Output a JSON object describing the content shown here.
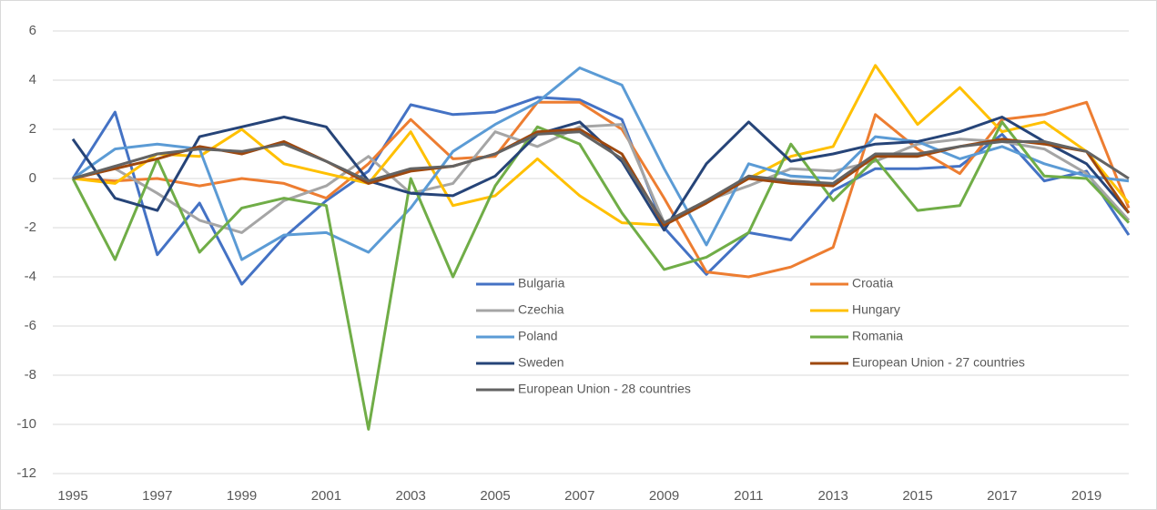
{
  "chart_data": {
    "type": "line",
    "x": [
      1995,
      1996,
      1997,
      1998,
      1999,
      2000,
      2001,
      2002,
      2003,
      2004,
      2005,
      2006,
      2007,
      2008,
      2009,
      2010,
      2011,
      2012,
      2013,
      2014,
      2015,
      2016,
      2017,
      2018,
      2019,
      2020
    ],
    "xlim": [
      1995,
      2020
    ],
    "xticks": [
      1995,
      1997,
      1999,
      2001,
      2003,
      2005,
      2007,
      2009,
      2011,
      2013,
      2015,
      2017,
      2019
    ],
    "ylim": [
      -12,
      6
    ],
    "yticks": [
      -12,
      -10,
      -8,
      -6,
      -4,
      -2,
      0,
      2,
      4,
      6
    ],
    "grid": true,
    "legend": "center",
    "series": [
      {
        "name": "Bulgaria",
        "color": "#4472c4",
        "values": [
          0,
          2.7,
          -3.1,
          -1.0,
          -4.3,
          -2.4,
          -0.9,
          0.3,
          3.0,
          2.6,
          2.7,
          3.3,
          3.2,
          2.4,
          -2.0,
          -3.9,
          -2.2,
          -2.5,
          -0.5,
          0.4,
          0.4,
          0.5,
          1.8,
          -0.1,
          0.3,
          -2.3
        ]
      },
      {
        "name": "Croatia",
        "color": "#ed7d31",
        "values": [
          0,
          -0.1,
          0,
          -0.3,
          0,
          -0.2,
          -0.8,
          0.6,
          2.4,
          0.8,
          0.9,
          3.1,
          3.1,
          2.0,
          -0.8,
          -3.8,
          -4.0,
          -3.6,
          -2.8,
          2.6,
          1.2,
          0.2,
          2.4,
          2.6,
          3.1,
          -1.2
        ]
      },
      {
        "name": "Czechia",
        "color": "#a5a5a5",
        "values": [
          0,
          0.4,
          -0.6,
          -1.7,
          -2.2,
          -0.9,
          -0.3,
          0.9,
          -0.6,
          -0.2,
          1.9,
          1.3,
          2.1,
          2.2,
          -1.8,
          -0.9,
          -0.3,
          0.4,
          0.3,
          0.7,
          1.4,
          1.6,
          1.5,
          1.2,
          0.2,
          -1.7
        ]
      },
      {
        "name": "Hungary",
        "color": "#ffc000",
        "values": [
          0,
          -0.2,
          1.0,
          0.9,
          2.0,
          0.6,
          0.2,
          -0.2,
          1.9,
          -1.1,
          -0.7,
          0.8,
          -0.7,
          -1.8,
          -1.9,
          -0.9,
          0,
          0.9,
          1.3,
          4.6,
          2.2,
          3.7,
          1.9,
          2.3,
          1.1,
          -1.0
        ]
      },
      {
        "name": "Poland",
        "color": "#5b9bd5",
        "values": [
          0,
          1.2,
          1.4,
          1.2,
          -3.3,
          -2.3,
          -2.2,
          -3.0,
          -1.2,
          1.1,
          2.2,
          3.1,
          4.5,
          3.8,
          0.4,
          -2.7,
          0.6,
          0.1,
          0,
          1.7,
          1.5,
          0.8,
          1.3,
          0.6,
          0.1,
          -0.1
        ]
      },
      {
        "name": "Romania",
        "color": "#70ad47",
        "values": [
          0,
          -3.3,
          0.8,
          -3.0,
          -1.2,
          -0.8,
          -1.1,
          -10.2,
          0,
          -4.0,
          -0.3,
          2.1,
          1.4,
          -1.4,
          -3.7,
          -3.2,
          -2.2,
          1.4,
          -0.9,
          0.8,
          -1.3,
          -1.1,
          2.3,
          0.1,
          0,
          -1.8
        ]
      },
      {
        "name": "Sweden",
        "color": "#264478",
        "values": [
          1.6,
          -0.8,
          -1.3,
          1.7,
          2.1,
          2.5,
          2.1,
          -0.1,
          -0.6,
          -0.7,
          0.1,
          1.8,
          2.3,
          0.7,
          -2.1,
          0.6,
          2.3,
          0.7,
          1.0,
          1.4,
          1.5,
          1.9,
          2.5,
          1.5,
          0.6,
          -1.4
        ]
      },
      {
        "name": "European Union - 27 countries",
        "color": "#9e480e",
        "values": [
          0,
          0.4,
          0.8,
          1.3,
          1.0,
          1.5,
          0.7,
          -0.2,
          0.3,
          0.5,
          1.0,
          1.9,
          2.0,
          1.0,
          -1.9,
          -1.0,
          0,
          -0.2,
          -0.3,
          0.9,
          0.9,
          1.3,
          1.6,
          1.4,
          1.1,
          -1.4
        ]
      },
      {
        "name": "European Union - 28 countries",
        "color": "#636363",
        "values": [
          0,
          0.5,
          1.0,
          1.2,
          1.1,
          1.4,
          0.7,
          -0.1,
          0.4,
          0.5,
          1.0,
          1.8,
          1.9,
          0.8,
          -1.8,
          -0.9,
          0.1,
          -0.1,
          -0.2,
          1.0,
          1.0,
          1.3,
          1.5,
          1.5,
          1.1,
          0
        ]
      }
    ]
  }
}
